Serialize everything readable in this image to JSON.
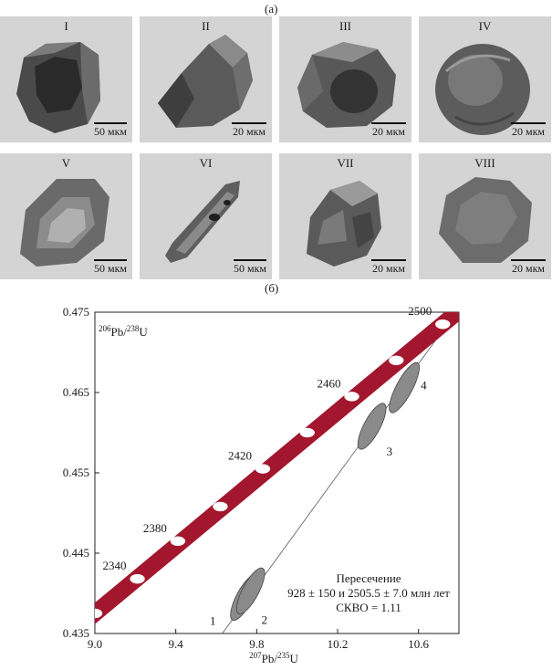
{
  "figure": {
    "panel_a_label": "(а)",
    "panel_b_label": "(б)"
  },
  "grains": [
    {
      "label": "I",
      "scale": "50 мкм"
    },
    {
      "label": "II",
      "scale": "20 мкм"
    },
    {
      "label": "III",
      "scale": "20 мкм"
    },
    {
      "label": "IV",
      "scale": "20 мкм"
    },
    {
      "label": "V",
      "scale": "50 мкм"
    },
    {
      "label": "VI",
      "scale": "50 мкм"
    },
    {
      "label": "VII",
      "scale": "20 мкм"
    },
    {
      "label": "VIII",
      "scale": "20 мкм"
    }
  ],
  "colors": {
    "concordia": "#a3172e",
    "ellipse": "#8a8a8a",
    "tile_bg": "#d4d4d4"
  },
  "chart_data": {
    "type": "scatter",
    "xlabel": "207Pb/235U",
    "ylabel": "206Pb/238U",
    "xlim": [
      9.0,
      10.8
    ],
    "ylim": [
      0.435,
      0.475
    ],
    "x_ticks": [
      "9.0",
      "9.4",
      "9.8",
      "10.2",
      "10.6"
    ],
    "x_tick_values": [
      9.0,
      9.4,
      9.8,
      10.2,
      10.6
    ],
    "y_ticks": [
      "0.475",
      "0.465",
      "0.455",
      "0.445",
      "0.435"
    ],
    "y_tick_values": [
      0.475,
      0.465,
      0.455,
      0.445,
      0.435
    ],
    "concordia_ages": [
      {
        "x": 9.0,
        "y": 0.4375,
        "label": ""
      },
      {
        "x": 9.21,
        "y": 0.4418,
        "label": "2340"
      },
      {
        "x": 9.41,
        "y": 0.4465,
        "label": "2380"
      },
      {
        "x": 9.62,
        "y": 0.4508,
        "label": ""
      },
      {
        "x": 9.83,
        "y": 0.4555,
        "label": "2420"
      },
      {
        "x": 10.05,
        "y": 0.46,
        "label": ""
      },
      {
        "x": 10.27,
        "y": 0.4645,
        "label": "2460"
      },
      {
        "x": 10.49,
        "y": 0.469,
        "label": ""
      },
      {
        "x": 10.72,
        "y": 0.4735,
        "label": "2500"
      }
    ],
    "discordia": {
      "x1": 9.63,
      "y1": 0.435,
      "x2": 10.8,
      "y2": 0.4755
    },
    "analyses": [
      {
        "label": "1",
        "x": 9.74,
        "y": 0.4395,
        "rx": 0.04,
        "ry": 0.0032
      },
      {
        "label": "2",
        "x": 9.77,
        "y": 0.4403,
        "rx": 0.04,
        "ry": 0.0032
      },
      {
        "label": "3",
        "x": 10.37,
        "y": 0.4608,
        "rx": 0.04,
        "ry": 0.0032
      },
      {
        "label": "4",
        "x": 10.53,
        "y": 0.4656,
        "rx": 0.04,
        "ry": 0.0035
      }
    ],
    "annotation": {
      "line1": "Пересечение",
      "line2": "928 ± 150 и 2505.5 ± 7.0 млн лет",
      "line3": "СКВО = 1.11"
    }
  }
}
